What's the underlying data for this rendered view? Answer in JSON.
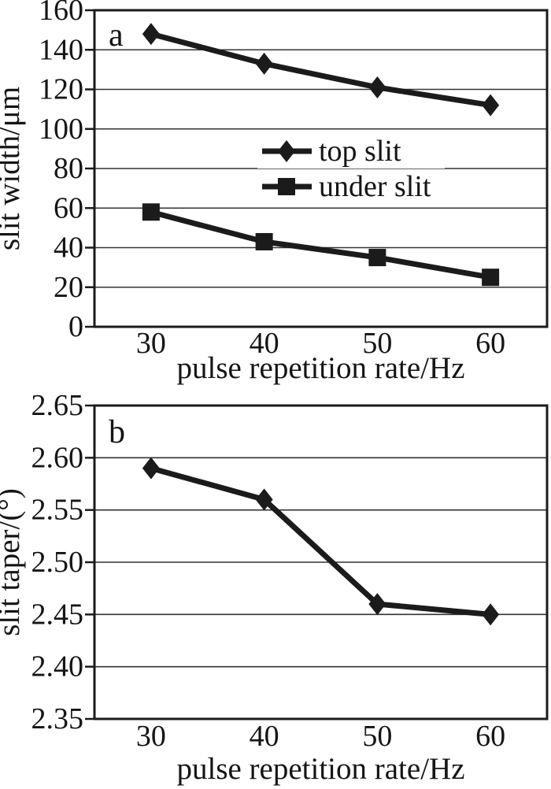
{
  "figure": {
    "panels": [
      {
        "id": "a",
        "panel_label": "a"
      },
      {
        "id": "b",
        "panel_label": "b"
      }
    ]
  },
  "colors": {
    "ink": "#1b1b1b",
    "grid": "#333333",
    "background": "#ffffff"
  },
  "chart_data": [
    {
      "id": "a",
      "type": "line",
      "panel_label": "a",
      "title": "",
      "xlabel": "pulse repetition rate/Hz",
      "ylabel": "slit width/μm",
      "x": [
        30,
        40,
        50,
        60
      ],
      "xticks": [
        30,
        40,
        50,
        60
      ],
      "xlim": [
        25,
        65
      ],
      "ylim": [
        0,
        160
      ],
      "yticks": [
        0,
        20,
        40,
        60,
        80,
        100,
        120,
        140,
        160
      ],
      "ytick_format": "int",
      "grid": true,
      "legend": {
        "visible": true,
        "position": "center"
      },
      "series": [
        {
          "name": "top slit",
          "marker": "diamond",
          "values": [
            148,
            133,
            121,
            112
          ]
        },
        {
          "name": "under slit",
          "marker": "square",
          "values": [
            58,
            43,
            35,
            25
          ]
        }
      ]
    },
    {
      "id": "b",
      "type": "line",
      "panel_label": "b",
      "title": "",
      "xlabel": "pulse repetition rate/Hz",
      "ylabel": "slit taper/(°)",
      "x": [
        30,
        40,
        50,
        60
      ],
      "xticks": [
        30,
        40,
        50,
        60
      ],
      "xlim": [
        25,
        65
      ],
      "ylim": [
        2.35,
        2.65
      ],
      "yticks": [
        2.35,
        2.4,
        2.45,
        2.5,
        2.55,
        2.6,
        2.65
      ],
      "ytick_format": "2dp",
      "grid": true,
      "legend": {
        "visible": false
      },
      "series": [
        {
          "name": "slit taper",
          "marker": "diamond",
          "values": [
            2.59,
            2.56,
            2.46,
            2.45
          ]
        }
      ]
    }
  ]
}
